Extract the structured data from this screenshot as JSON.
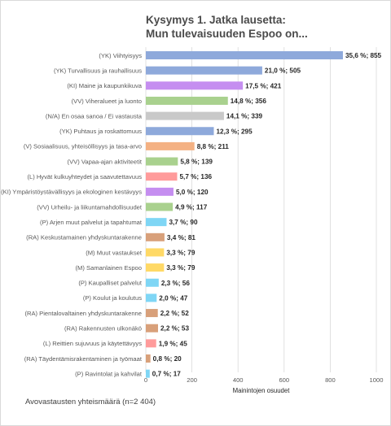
{
  "chart_data": {
    "type": "bar",
    "orientation": "horizontal",
    "title": [
      "Kysymys 1. Jatka lausetta:",
      "Mun tulevaisuuden Espoo on..."
    ],
    "xlabel": "Mainintojen osuudet",
    "xlim": [
      0,
      1000
    ],
    "xticks": [
      "0",
      "200",
      "400",
      "600",
      "800",
      "1000"
    ],
    "grid": true,
    "categories": [
      "(YK) Viihtyisyys",
      "(YK) Turvallisuus ja rauhallisuus",
      "(KI) Maine ja kaupunkikuva",
      "(VV) Viheralueet ja luonto",
      "(N/A) En osaa sanoa / Ei vastausta",
      "(YK) Puhtaus ja roskattomuus",
      "(V) Sosiaalisuus, yhteisöllisyys ja tasa-arvo",
      "(VV) Vapaa-ajan aktiviteetit",
      "(L) Hyvät kulkuyhteydet ja saavutettavuus",
      "(KI) Ympäristöystävällisyys ja ekologinen kestävyys",
      "(VV) Urheilu- ja liikuntamahdollisuudet",
      "(P) Arjen muut palvelut ja tapahtumat",
      "(RA) Keskustamainen yhdyskuntarakenne",
      "(M) Muut vastaukset",
      "(M) Samanlainen Espoo",
      "(P) Kaupalliset palvelut",
      "(P) Koulut ja koulutus",
      "(RA) Pientalovaltainen yhdyskuntarakenne",
      "(RA) Rakennusten ulkonäkö",
      "(L) Reittien sujuvuus ja käytettävyys",
      "(RA) Täydentämisrakentaminen ja työmaat",
      "(P) Ravintolat ja kahvilat"
    ],
    "values": [
      855,
      505,
      421,
      356,
      339,
      295,
      211,
      139,
      136,
      120,
      117,
      90,
      81,
      79,
      79,
      56,
      47,
      52,
      53,
      45,
      20,
      17
    ],
    "data_labels": [
      "35,6 %; 855",
      "21,0 %; 505",
      "17,5 %; 421",
      "14,8 %; 356",
      "14,1 %; 339",
      "12,3 %; 295",
      "8,8 %; 211",
      "5,8 %; 139",
      "5,7 %; 136",
      "5,0 %; 120",
      "4,9 %; 117",
      "3,7 %; 90",
      "3,4 %; 81",
      "3,3 %; 79",
      "3,3 %; 79",
      "2,3 %; 56",
      "2,0 %; 47",
      "2,2 %; 52",
      "2,2 %; 53",
      "1,9 %; 45",
      "0,8 %; 20",
      "0,7 %; 17"
    ],
    "colors": [
      "#8ea9db",
      "#8ea9db",
      "#c58ef0",
      "#a9d18e",
      "#c9c9c9",
      "#8ea9db",
      "#f4b183",
      "#a9d18e",
      "#ff9b9b",
      "#c58ef0",
      "#a9d18e",
      "#7fd6f5",
      "#d8a07a",
      "#ffd966",
      "#ffd966",
      "#7fd6f5",
      "#7fd6f5",
      "#d8a07a",
      "#d8a07a",
      "#ff9b9b",
      "#d8a07a",
      "#7fd6f5"
    ],
    "grid_color": "#d9d9d9"
  },
  "footnote": "Avovastausten yhteismäärä (n=2 404)"
}
